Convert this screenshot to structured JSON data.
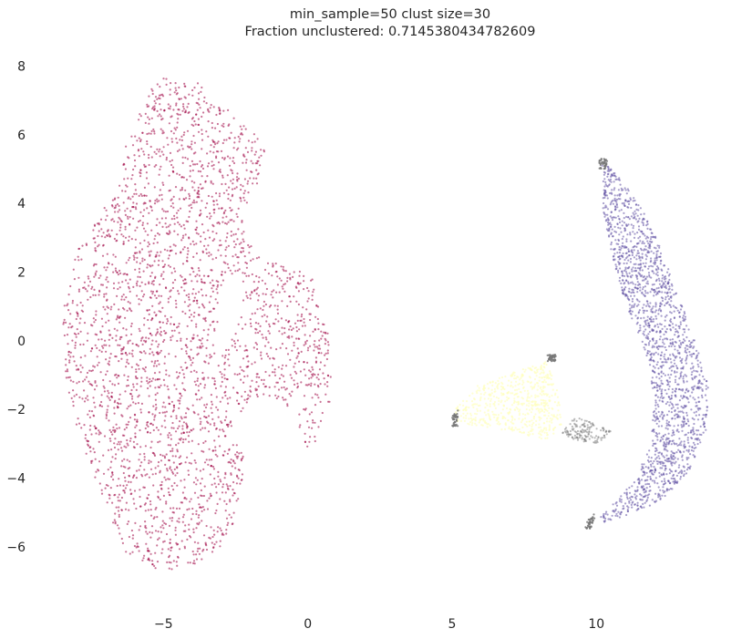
{
  "chart_data": {
    "type": "scatter",
    "title": [
      "min_sample=50 clust size=30",
      "Fraction unclustered: 0.7145380434782609"
    ],
    "xlabel": "",
    "ylabel": "",
    "xlim": [
      -9.4,
      14.6
    ],
    "ylim": [
      -7.6,
      8.6
    ],
    "xticks": [
      -5,
      0,
      5,
      10
    ],
    "xtick_labels": [
      "−5",
      "0",
      "5",
      "10"
    ],
    "yticks": [
      -6,
      -4,
      -2,
      0,
      2,
      4,
      6,
      8
    ],
    "ytick_labels": [
      "−6",
      "−4",
      "−2",
      "0",
      "2",
      "4",
      "6",
      "8"
    ],
    "grid": false,
    "legend": "none",
    "series": [
      {
        "color": "#9e0142",
        "density": 3000,
        "opacity": 0.55,
        "polygon": [
          [
            -5,
            7.7
          ],
          [
            -3.8,
            7.5
          ],
          [
            -2.6,
            6.6
          ],
          [
            -1.4,
            5.8
          ],
          [
            -1.7,
            4.7
          ],
          [
            -2.3,
            3.3
          ],
          [
            -1.6,
            2.4
          ],
          [
            -0.6,
            2.1
          ],
          [
            0.2,
            1.9
          ],
          [
            0.7,
            0.4
          ],
          [
            0.8,
            -0.9
          ],
          [
            0.9,
            -1.7
          ],
          [
            0.5,
            -2.4
          ],
          [
            0.3,
            -3.1
          ],
          [
            -0.1,
            -3.2
          ],
          [
            -0.4,
            -2.1
          ],
          [
            -1.2,
            -1.6
          ],
          [
            -2.3,
            -2.0
          ],
          [
            -2.2,
            -3.6
          ],
          [
            -2.4,
            -5.0
          ],
          [
            -3.0,
            -6.0
          ],
          [
            -4.0,
            -6.6
          ],
          [
            -5.1,
            -6.7
          ],
          [
            -6.3,
            -6.2
          ],
          [
            -7.0,
            -4.8
          ],
          [
            -7.9,
            -3.0
          ],
          [
            -8.4,
            -1.2
          ],
          [
            -8.5,
            0.8
          ],
          [
            -8.0,
            2.6
          ],
          [
            -6.8,
            4.2
          ],
          [
            -6.2,
            6.0
          ],
          [
            -5.6,
            7.3
          ]
        ],
        "holes": [
          [
            [
              -3.0,
              1.6
            ],
            [
              -2.4,
              1.7
            ],
            [
              -2.3,
              0.8
            ],
            [
              -2.6,
              0.1
            ],
            [
              -3.2,
              -0.4
            ],
            [
              -3.1,
              0.7
            ]
          ],
          [
            [
              -2.6,
              -2.2
            ],
            [
              -1.9,
              -2.1
            ],
            [
              -1.8,
              -3.0
            ],
            [
              -2.4,
              -3.1
            ]
          ]
        ]
      },
      {
        "color": "#5e4fa2",
        "density": 1800,
        "opacity": 0.55,
        "polygon": [
          [
            10.2,
            5.3
          ],
          [
            10.7,
            4.9
          ],
          [
            11.6,
            3.8
          ],
          [
            12.3,
            2.6
          ],
          [
            12.9,
            1.2
          ],
          [
            13.5,
            -0.2
          ],
          [
            13.9,
            -1.4
          ],
          [
            13.8,
            -2.6
          ],
          [
            13.2,
            -3.8
          ],
          [
            12.2,
            -4.7
          ],
          [
            11.0,
            -5.1
          ],
          [
            9.8,
            -5.4
          ],
          [
            10.4,
            -4.9
          ],
          [
            11.3,
            -4.1
          ],
          [
            11.9,
            -3.0
          ],
          [
            12.0,
            -1.6
          ],
          [
            11.7,
            -0.3
          ],
          [
            11.0,
            1.1
          ],
          [
            10.5,
            2.6
          ],
          [
            10.2,
            4.0
          ]
        ]
      },
      {
        "color": "#ffffbf",
        "density": 600,
        "opacity": 0.7,
        "polygon": [
          [
            5.1,
            -2.0
          ],
          [
            5.9,
            -1.3
          ],
          [
            7.2,
            -0.9
          ],
          [
            8.3,
            -0.6
          ],
          [
            8.7,
            -1.6
          ],
          [
            8.8,
            -2.5
          ],
          [
            8.3,
            -2.9
          ],
          [
            7.2,
            -2.7
          ],
          [
            6.0,
            -2.5
          ],
          [
            5.2,
            -2.4
          ]
        ]
      },
      {
        "color": "#777777",
        "density": 140,
        "opacity": 0.5,
        "polygon": [
          [
            9.2,
            -2.2
          ],
          [
            9.9,
            -2.4
          ],
          [
            10.6,
            -2.6
          ],
          [
            10.1,
            -3.0
          ],
          [
            9.3,
            -2.9
          ],
          [
            8.8,
            -2.7
          ]
        ],
        "clusters": [
          [
            [
              5.0,
              -2.1
            ],
            [
              5.2,
              -2.0
            ],
            [
              5.2,
              -2.5
            ],
            [
              5.0,
              -2.5
            ]
          ],
          [
            [
              8.3,
              -0.4
            ],
            [
              8.6,
              -0.4
            ],
            [
              8.6,
              -0.6
            ],
            [
              8.3,
              -0.6
            ]
          ],
          [
            [
              9.7,
              -5.2
            ],
            [
              10.0,
              -5.0
            ],
            [
              9.8,
              -5.5
            ],
            [
              9.6,
              -5.5
            ]
          ],
          [
            [
              10.1,
              5.3
            ],
            [
              10.4,
              5.3
            ],
            [
              10.3,
              5.0
            ],
            [
              10.1,
              5.0
            ]
          ]
        ]
      }
    ]
  }
}
